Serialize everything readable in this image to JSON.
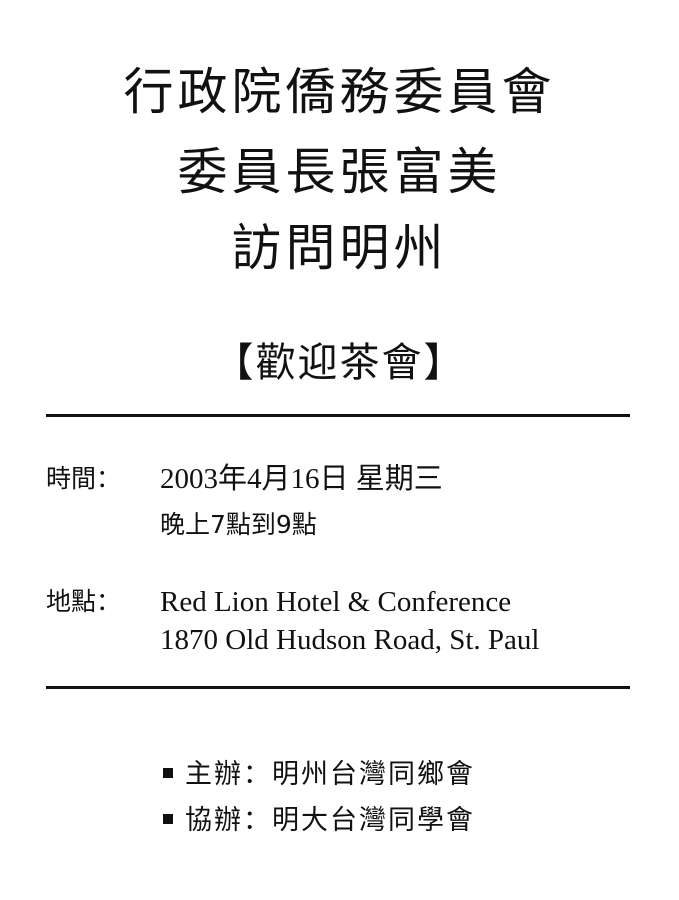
{
  "title": {
    "line1": "行政院僑務委員會",
    "line2": "委員長張富美",
    "line3": "訪問明州"
  },
  "subtitle": "【歡迎茶會】",
  "event": {
    "time_label": "時間：",
    "time_line1": "2003年4月16日 星期三",
    "time_line2": "晚上7點到9點",
    "place_label": "地點：",
    "place_line1": "Red Lion Hotel & Conference",
    "place_line2": "1870 Old Hudson Road, St. Paul"
  },
  "organizers": [
    {
      "text": "主辦：明州台灣同鄉會"
    },
    {
      "text": "協辦：明大台灣同學會"
    }
  ]
}
